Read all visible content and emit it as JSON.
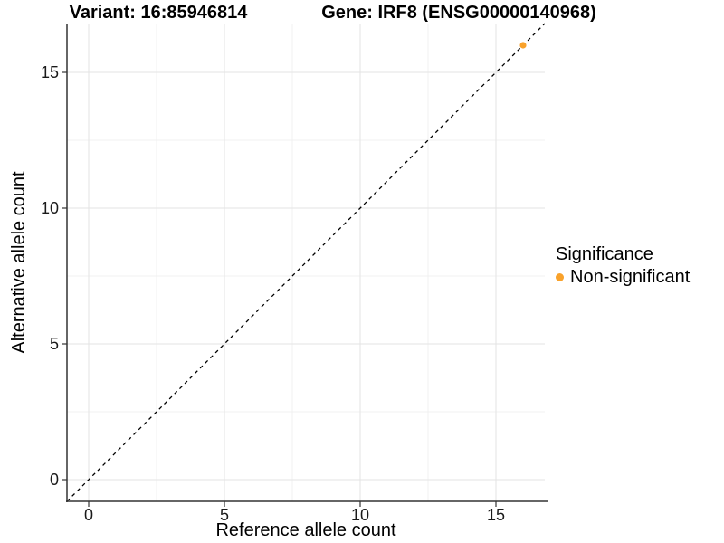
{
  "chart_data": {
    "type": "scatter",
    "titles": [
      "Variant: 16:85946814",
      "Gene: IRF8 (ENSG00000140968)"
    ],
    "xlabel": "Reference allele count",
    "ylabel": "Alternative allele count",
    "xlim": [
      -0.8,
      16.8
    ],
    "ylim": [
      -0.8,
      16.8
    ],
    "x_ticks": [
      0,
      5,
      10,
      15
    ],
    "y_ticks": [
      0,
      5,
      10,
      15
    ],
    "x_minor_ticks": [
      2.5,
      7.5,
      12.5
    ],
    "y_minor_ticks": [
      2.5,
      7.5,
      12.5
    ],
    "grid": "major and minor, very light gray on white",
    "identity_line": {
      "equation": "y = x",
      "style": "dashed",
      "color": "#000000"
    },
    "series": [
      {
        "name": "Non-significant",
        "color": "#F9A22B",
        "points": [
          {
            "x": 16,
            "y": 16
          }
        ]
      }
    ],
    "legend": {
      "title": "Significance",
      "position": "right-center",
      "entries": [
        {
          "label": "Non-significant",
          "color": "#F9A22B",
          "marker": "circle"
        }
      ]
    },
    "colors": {
      "background": "#FFFFFF",
      "axis_line": "#333333",
      "tick_text": "#1A1A1A",
      "grid_major": "#E3E3E3",
      "grid_minor": "#F1F1F1",
      "point": "#F9A22B"
    }
  }
}
